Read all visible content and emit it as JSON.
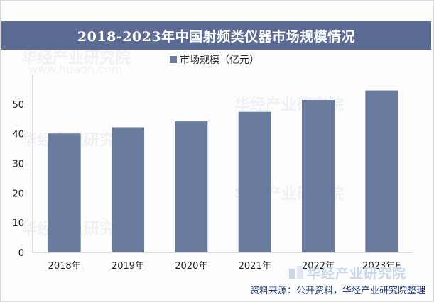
{
  "title": "2018-2023年中国射频类仪器市场规模情况",
  "legend": {
    "label": "市场规模（亿元）",
    "color": "#6a7ba0"
  },
  "source": "资料来源：公开资料，华经产业研究院整理",
  "brand": {
    "name": "华经产业研究院",
    "url": "www.huaon.com"
  },
  "chart_data": {
    "type": "bar",
    "categories": [
      "2018年",
      "2019年",
      "2020年",
      "2021年",
      "2022年",
      "2023年E"
    ],
    "series": [
      {
        "name": "市场规模（亿元）",
        "values": [
          40.1,
          42.2,
          44.2,
          47.4,
          51.4,
          54.6
        ]
      }
    ],
    "title": "2018-2023年中国射频类仪器市场规模情况",
    "xlabel": "",
    "ylabel": "",
    "ylim": [
      0,
      60
    ],
    "yticks": [
      0,
      10,
      20,
      30,
      40,
      50
    ],
    "grid": false,
    "legend_position": "top-center",
    "bar_color": "#6a7ba0"
  }
}
